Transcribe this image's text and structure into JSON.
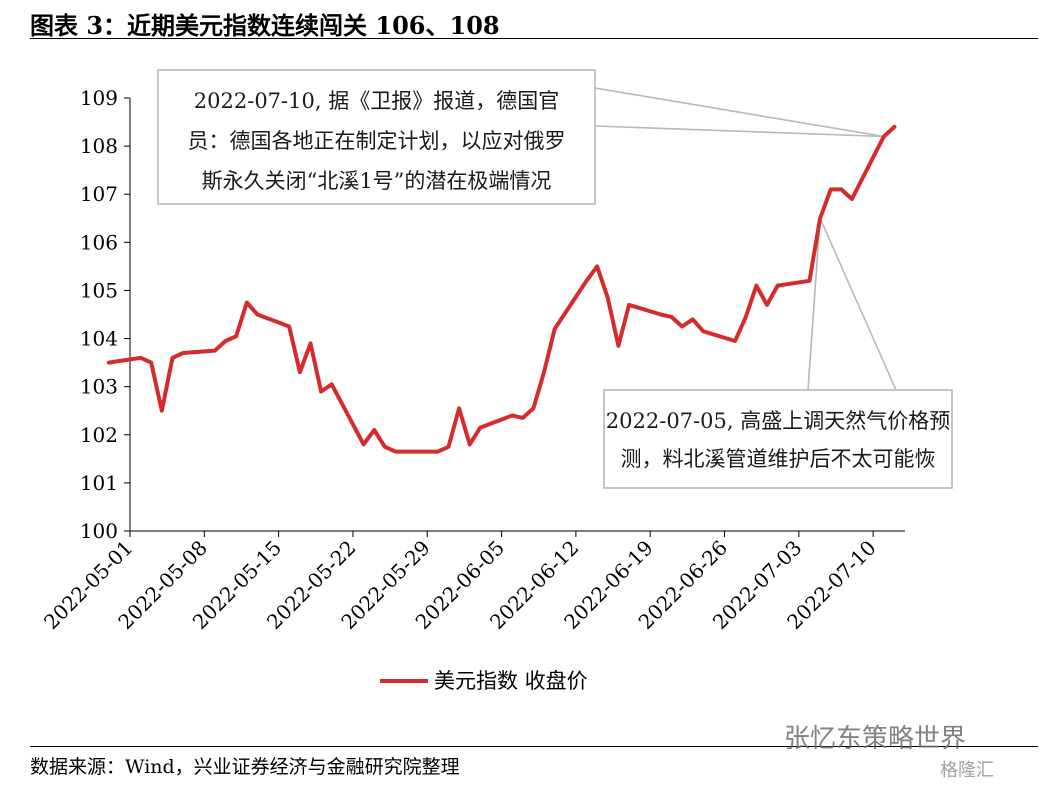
{
  "header": {
    "title": "图表 3：近期美元指数连续闯关 106、108"
  },
  "footer": {
    "source": "数据来源：Wind，兴业证券经济与金融研究院整理"
  },
  "watermark": {
    "text": "张忆东策略世界",
    "logo": "格隆汇"
  },
  "chart_data": {
    "type": "line",
    "title": "",
    "xlabel": "",
    "ylabel": "",
    "ylim": [
      100,
      109
    ],
    "yticks": [
      "100",
      "101",
      "102",
      "103",
      "104",
      "105",
      "106",
      "107",
      "108",
      "109"
    ],
    "xticks": [
      "2022-05-01",
      "2022-05-08",
      "2022-05-15",
      "2022-05-22",
      "2022-05-29",
      "2022-06-05",
      "2022-06-12",
      "2022-06-19",
      "2022-06-26",
      "2022-07-03",
      "2022-07-10"
    ],
    "grid": false,
    "legend": "bottom",
    "series": [
      {
        "name": "美元指数 收盘价",
        "color": "#d42b2b",
        "x": [
          "2022-04-29",
          "2022-05-02",
          "2022-05-03",
          "2022-05-04",
          "2022-05-05",
          "2022-05-06",
          "2022-05-09",
          "2022-05-10",
          "2022-05-11",
          "2022-05-12",
          "2022-05-13",
          "2022-05-16",
          "2022-05-17",
          "2022-05-18",
          "2022-05-19",
          "2022-05-20",
          "2022-05-23",
          "2022-05-24",
          "2022-05-25",
          "2022-05-26",
          "2022-05-27",
          "2022-05-30",
          "2022-05-31",
          "2022-06-01",
          "2022-06-02",
          "2022-06-03",
          "2022-06-06",
          "2022-06-07",
          "2022-06-08",
          "2022-06-09",
          "2022-06-10",
          "2022-06-13",
          "2022-06-14",
          "2022-06-15",
          "2022-06-16",
          "2022-06-17",
          "2022-06-20",
          "2022-06-21",
          "2022-06-22",
          "2022-06-23",
          "2022-06-24",
          "2022-06-27",
          "2022-06-28",
          "2022-06-29",
          "2022-06-30",
          "2022-07-01",
          "2022-07-04",
          "2022-07-05",
          "2022-07-06",
          "2022-07-07",
          "2022-07-08",
          "2022-07-11",
          "2022-07-12"
        ],
        "values": [
          103.5,
          103.6,
          103.5,
          102.5,
          103.6,
          103.7,
          103.75,
          103.95,
          104.05,
          104.75,
          104.5,
          104.25,
          103.3,
          103.9,
          102.9,
          103.05,
          101.8,
          102.1,
          101.75,
          101.65,
          101.65,
          101.65,
          101.75,
          102.55,
          101.8,
          102.15,
          102.4,
          102.35,
          102.55,
          103.3,
          104.2,
          105.2,
          105.5,
          104.85,
          103.85,
          104.7,
          104.5,
          104.45,
          104.25,
          104.4,
          104.15,
          103.95,
          104.45,
          105.1,
          104.7,
          105.1,
          105.2,
          106.5,
          107.1,
          107.1,
          106.9,
          108.2,
          108.4
        ]
      }
    ],
    "annotations": [
      {
        "text_lines": [
          "2022-07-10, 据《卫报》报道，德国官",
          "员：德国各地正在制定计划，以应对俄罗",
          "斯永久关闭“北溪1号”的潜在极端情况"
        ],
        "target_x": "2022-07-11",
        "target_y": 108.2
      },
      {
        "text_lines": [
          "2022-07-05, 高盛上调天然气价格预",
          "测，料北溪管道维护后不太可能恢"
        ],
        "target_x": "2022-07-05",
        "target_y": 106.5
      }
    ]
  }
}
